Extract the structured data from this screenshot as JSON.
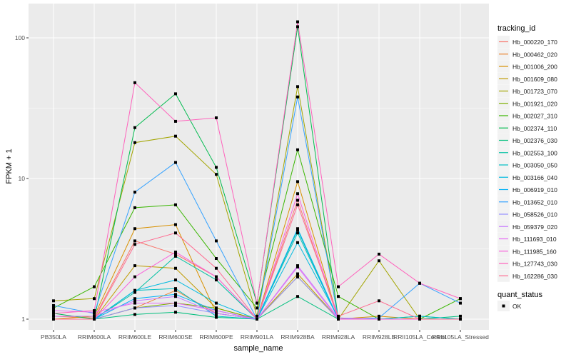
{
  "chart_data": {
    "type": "line",
    "xlabel": "sample_name",
    "ylabel": "FPKM + 1",
    "yscale": "log10",
    "ylim": [
      0.95,
      140
    ],
    "yticks": [
      1,
      10,
      100
    ],
    "ytick_labels": [
      "1",
      "10",
      "100"
    ],
    "categories": [
      "PB350LA",
      "RRIM600LA",
      "RRIM600LE",
      "RRIM600SE",
      "RRIM600PE",
      "RRIM901LA",
      "RRIM928BA",
      "RRIM928LA",
      "RRIM928LE",
      "RRII105LA_Control",
      "RRII105LA_Stressed"
    ],
    "legend_title": "tracking_id",
    "legend_position": "right",
    "series": [
      {
        "name": "Hb_000220_170",
        "color": "#F8766D",
        "values": [
          1.05,
          1.02,
          3.6,
          2.9,
          2.0,
          1.0,
          7,
          1.0,
          1.0,
          1.0,
          1.0
        ]
      },
      {
        "name": "Hb_000462_020",
        "color": "#EA8331",
        "values": [
          1.0,
          1.0,
          1.2,
          1.6,
          1.1,
          1.0,
          2.0,
          1.0,
          1.0,
          1.0,
          1.0
        ]
      },
      {
        "name": "Hb_001006_200",
        "color": "#D89000",
        "values": [
          1.0,
          1.05,
          4.4,
          4.7,
          1.1,
          1.0,
          9.5,
          1.0,
          1.05,
          1.0,
          1.0
        ]
      },
      {
        "name": "Hb_001609_080",
        "color": "#C09B00",
        "values": [
          1.0,
          1.0,
          2.4,
          2.3,
          1.2,
          1.0,
          2.1,
          1.0,
          1.0,
          1.0,
          1.0
        ]
      },
      {
        "name": "Hb_001723_070",
        "color": "#A3A500",
        "values": [
          1.35,
          1.4,
          18,
          20,
          10.7,
          1.05,
          45,
          1.0,
          2.6,
          1.0,
          1.0
        ]
      },
      {
        "name": "Hb_001921_020",
        "color": "#7CAE00",
        "values": [
          1.0,
          1.0,
          1.2,
          1.3,
          1.2,
          1.0,
          2.0,
          1.0,
          1.0,
          1.0,
          1.0
        ]
      },
      {
        "name": "Hb_002027_310",
        "color": "#39B600",
        "values": [
          1.2,
          1.7,
          6.2,
          6.5,
          2.7,
          1.2,
          16,
          1.45,
          1.0,
          1.0,
          1.4
        ]
      },
      {
        "name": "Hb_002374_110",
        "color": "#00BB4E",
        "values": [
          1.1,
          1.0,
          23,
          40,
          12,
          1.3,
          120,
          1.0,
          1.0,
          1.0,
          1.0
        ]
      },
      {
        "name": "Hb_002376_030",
        "color": "#00BF7D",
        "values": [
          1.0,
          1.0,
          1.08,
          1.12,
          1.03,
          1.0,
          1.45,
          1.0,
          1.0,
          1.0,
          1.05
        ]
      },
      {
        "name": "Hb_002553_100",
        "color": "#00C1A3",
        "values": [
          1.0,
          1.0,
          1.55,
          2.8,
          1.9,
          1.0,
          4.3,
          1.0,
          1.0,
          1.05,
          1.0
        ]
      },
      {
        "name": "Hb_003050_050",
        "color": "#00BFC4",
        "values": [
          1.0,
          1.0,
          1.6,
          1.65,
          1.05,
          1.0,
          4.1,
          1.0,
          1.0,
          1.05,
          1.0
        ]
      },
      {
        "name": "Hb_003166_040",
        "color": "#00BAE0",
        "values": [
          1.0,
          1.0,
          1.6,
          1.9,
          1.3,
          1.0,
          3.5,
          1.02,
          1.0,
          1.0,
          1.0
        ]
      },
      {
        "name": "Hb_006919_010",
        "color": "#00B0F6",
        "values": [
          1.0,
          1.0,
          1.4,
          1.5,
          1.15,
          1.0,
          4.4,
          1.0,
          1.0,
          1.0,
          1.0
        ]
      },
      {
        "name": "Hb_013652_010",
        "color": "#35A2FF",
        "values": [
          1.25,
          1.1,
          8,
          13,
          3.6,
          1.0,
          38,
          1.0,
          1.02,
          1.8,
          1.3
        ]
      },
      {
        "name": "Hb_058526_010",
        "color": "#9590FF",
        "values": [
          1.0,
          1.0,
          1.2,
          1.25,
          1.1,
          1.0,
          2.0,
          1.0,
          1.0,
          1.0,
          1.0
        ]
      },
      {
        "name": "Hb_059379_020",
        "color": "#C77CFF",
        "values": [
          1.05,
          1.05,
          1.35,
          1.45,
          1.1,
          1.0,
          2.4,
          1.02,
          1.0,
          1.0,
          1.0
        ]
      },
      {
        "name": "Hb_111693_010",
        "color": "#E76BF3",
        "values": [
          1.15,
          1.12,
          1.3,
          1.3,
          1.15,
          1.0,
          2.35,
          1.0,
          1.0,
          1.0,
          1.0
        ]
      },
      {
        "name": "Hb_111985_160",
        "color": "#FA62DB",
        "values": [
          1.0,
          1.0,
          2.0,
          3.0,
          2.0,
          1.0,
          7.8,
          1.0,
          1.0,
          1.0,
          1.0
        ]
      },
      {
        "name": "Hb_127743_030",
        "color": "#FF62BC",
        "values": [
          1.1,
          1.15,
          48,
          25.5,
          27,
          1.3,
          130,
          1.7,
          2.9,
          1.8,
          1.4
        ]
      },
      {
        "name": "Hb_162286_030",
        "color": "#FF6C91",
        "values": [
          1.0,
          1.0,
          3.4,
          4.1,
          2.3,
          1.0,
          6.5,
          1.05,
          1.35,
          1.0,
          1.0
        ]
      }
    ],
    "shape_legend": {
      "title": "quant_status",
      "entries": [
        "OK"
      ]
    }
  }
}
